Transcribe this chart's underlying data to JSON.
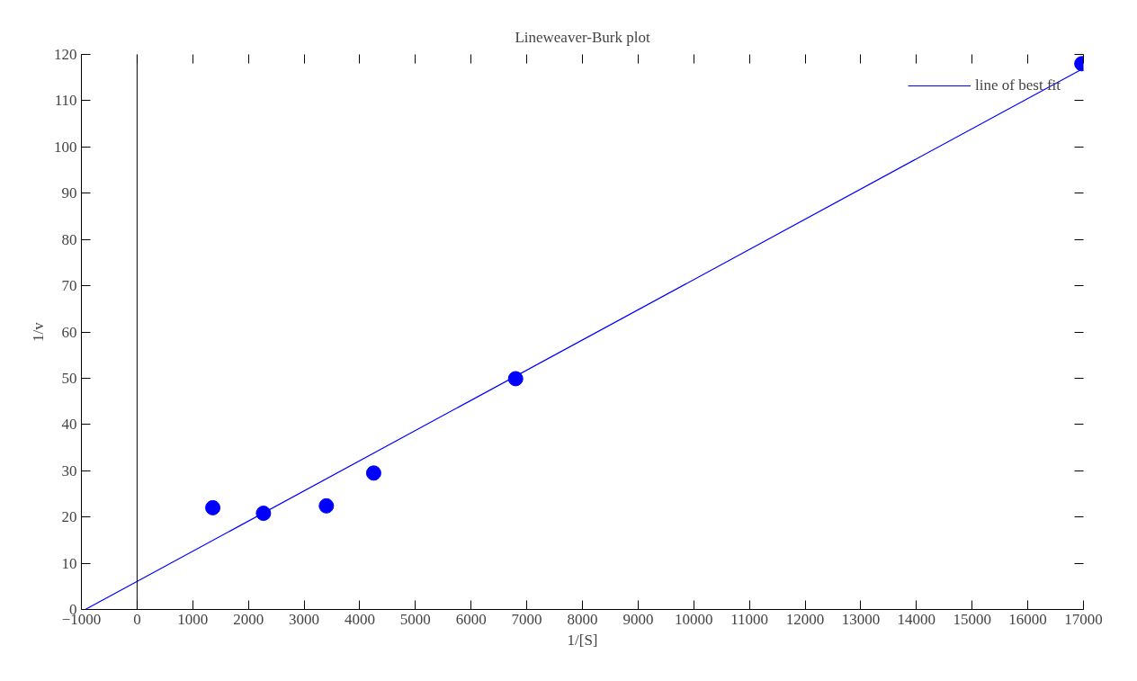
{
  "chart_data": {
    "type": "scatter",
    "title": "Lineweaver-Burk plot",
    "xlabel": "1/[S]",
    "ylabel": "1/v",
    "series": [
      {
        "color": "#0000ff",
        "marker": "circle",
        "x": [
          1360,
          2270,
          3400,
          4250,
          6800,
          16970
        ],
        "values": [
          22,
          20.8,
          22.4,
          29.5,
          49.9,
          118
        ]
      },
      {
        "type": "line",
        "name": "line of best fit",
        "color": "#0000ff",
        "line_style": "solid",
        "marker": "none",
        "x": [
          -930,
          17000
        ],
        "values": [
          0,
          117
        ]
      }
    ],
    "xlim": [
      -1000,
      17000
    ],
    "ylim": [
      0,
      120
    ],
    "xticks": [
      -1000,
      0,
      1000,
      2000,
      3000,
      4000,
      5000,
      6000,
      7000,
      8000,
      9000,
      10000,
      11000,
      12000,
      13000,
      14000,
      15000,
      16000,
      17000
    ],
    "yticks": [
      0,
      10,
      20,
      30,
      40,
      50,
      60,
      70,
      80,
      90,
      100,
      110,
      120
    ],
    "ref_lines": [
      {
        "axis": "x",
        "value": 0,
        "color": "#000000"
      }
    ],
    "grid": false,
    "legend": "top right"
  }
}
